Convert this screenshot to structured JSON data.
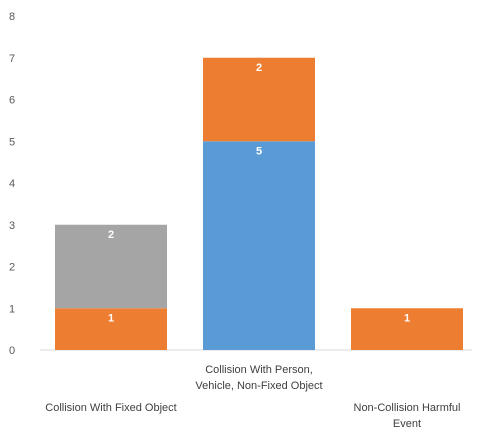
{
  "chart_data": {
    "type": "bar",
    "stacked": true,
    "categories": [
      [
        "Collision With Fixed Object"
      ],
      [
        "Collision With Person,",
        "Vehicle, Non-Fixed Object"
      ],
      [
        "Non-Collision Harmful",
        "Event"
      ]
    ],
    "series": [
      {
        "values": [
          0,
          5,
          0
        ],
        "color": "#5b9bd5",
        "labels": [
          "",
          "5",
          ""
        ]
      },
      {
        "values": [
          1,
          2,
          1
        ],
        "color": "#ed7d31",
        "labels": [
          "1",
          "2",
          "1"
        ]
      },
      {
        "values": [
          2,
          0,
          0
        ],
        "color": "#a5a5a5",
        "labels": [
          "2",
          "",
          ""
        ]
      }
    ],
    "y_ticks": [
      "0",
      "1",
      "2",
      "3",
      "4",
      "5",
      "6",
      "7",
      "8"
    ],
    "ylim": [
      0,
      8
    ],
    "title": "",
    "xlabel": "",
    "ylabel": "",
    "grid": false,
    "legend": "none"
  }
}
